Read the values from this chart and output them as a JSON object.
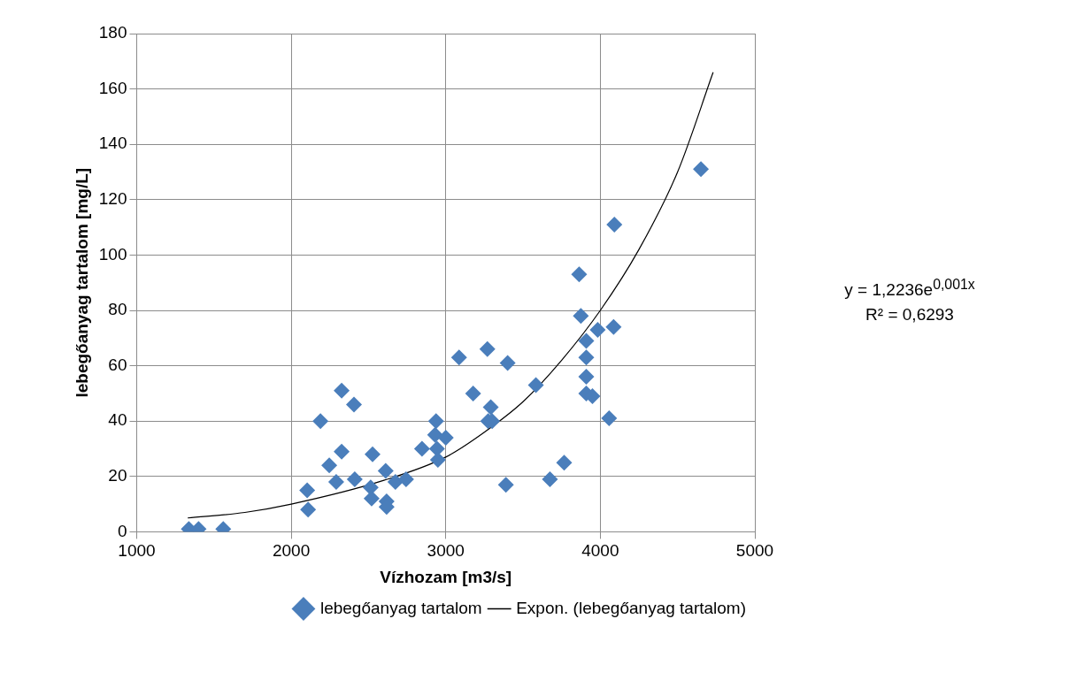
{
  "chart_data": {
    "type": "scatter",
    "xlabel": "Vízhozam [m3/s]",
    "ylabel": "lebegőanyag tartalom [mg/L]",
    "xlim": [
      1000,
      5000
    ],
    "xticks": [
      1000,
      2000,
      3000,
      4000,
      5000
    ],
    "ylim": [
      0,
      180
    ],
    "yticks": [
      0,
      20,
      40,
      60,
      80,
      100,
      120,
      140,
      160,
      180
    ],
    "grid": true,
    "legend": "bottom right",
    "marker": "diamond",
    "series": [
      {
        "name": "lebegőanyag tartalom",
        "color": "#4a7ebb",
        "x": [
          1337,
          1400,
          1560,
          2103,
          2109,
          2189,
          2246,
          2291,
          2326,
          2326,
          2406,
          2411,
          2526,
          2514,
          2520,
          2611,
          2617,
          2617,
          2674,
          2743,
          2846,
          2937,
          2931,
          2943,
          2949,
          3000,
          3086,
          3177,
          3269,
          3291,
          3274,
          3300,
          3389,
          3400,
          3583,
          3674,
          3766,
          3863,
          3874,
          3909,
          3909,
          3909,
          3909,
          3949,
          3983,
          4057,
          4086,
          4091,
          4651
        ],
        "values": [
          1,
          1,
          1,
          15,
          8,
          40,
          24,
          18,
          51,
          29,
          46,
          19,
          28,
          16,
          12,
          22,
          11,
          9,
          18,
          19,
          30,
          40,
          35,
          30,
          26,
          34,
          63,
          50,
          66,
          45,
          40,
          40,
          17,
          61,
          53,
          19,
          25,
          93,
          78,
          69,
          63,
          56,
          50,
          49,
          73,
          41,
          74,
          111,
          131
        ]
      },
      {
        "name": "Expon. (lebegőanyag tartalom)",
        "type": "line",
        "color": "#000000",
        "marker": "none",
        "x": [
          1330,
          1700,
          2000,
          2600,
          3000,
          3250,
          3500,
          3750,
          4000,
          4250,
          4500,
          4730
        ],
        "values": [
          5,
          7,
          10,
          18.6,
          27,
          36,
          47,
          62,
          80,
          102,
          130,
          166
        ]
      }
    ],
    "annotations": [
      "y = 1,2236e$^{0,001x}$",
      "R² = 0,6293"
    ]
  }
}
